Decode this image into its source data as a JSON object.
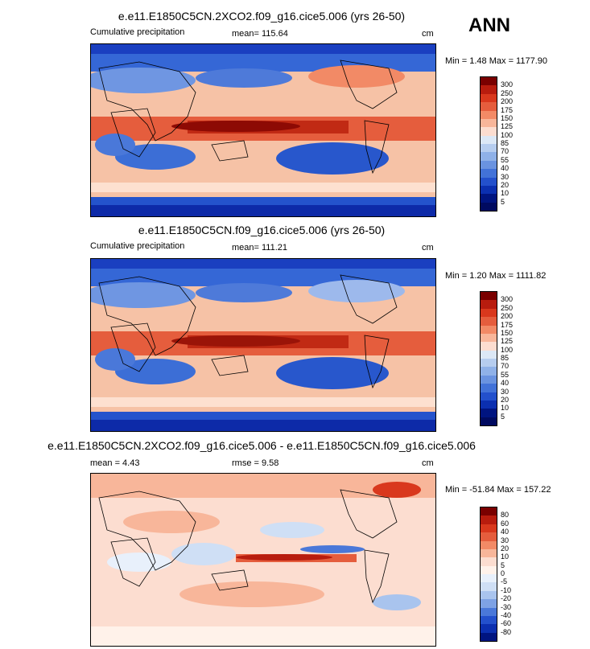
{
  "season": "ANN",
  "units": "cm",
  "panels": [
    {
      "title": "e.e11.E1850C5CN.2XCO2.f09_g16.cice5.006 (yrs 26-50)",
      "subtitle": "Cumulative precipitation",
      "mean_text": "mean= 115.64",
      "minmax": "Min =   1.48 Max = 1177.90",
      "levels": [
        "300",
        "250",
        "200",
        "175",
        "150",
        "125",
        "100",
        "85",
        "70",
        "55",
        "40",
        "30",
        "20",
        "10",
        "5"
      ],
      "colors": [
        "#7a0000",
        "#b81c0e",
        "#d9381d",
        "#e55d3d",
        "#f28a66",
        "#f8b69a",
        "#fcddd0",
        "#dce8f6",
        "#b6cdef",
        "#8fb1e8",
        "#6a93e0",
        "#4272d8",
        "#2350cc",
        "#0b2fb0",
        "#001480",
        "#000a60"
      ]
    },
    {
      "title": "e.e11.E1850C5CN.f09_g16.cice5.006 (yrs 26-50)",
      "subtitle": "Cumulative precipitation",
      "mean_text": "mean= 111.21",
      "minmax": "Min =   1.20 Max = 1111.82",
      "levels": [
        "300",
        "250",
        "200",
        "175",
        "150",
        "125",
        "100",
        "85",
        "70",
        "55",
        "40",
        "30",
        "20",
        "10",
        "5"
      ],
      "colors": [
        "#7a0000",
        "#b81c0e",
        "#d9381d",
        "#e55d3d",
        "#f28a66",
        "#f8b69a",
        "#fcddd0",
        "#dce8f6",
        "#b6cdef",
        "#8fb1e8",
        "#6a93e0",
        "#4272d8",
        "#2350cc",
        "#0b2fb0",
        "#001480",
        "#000a60"
      ]
    },
    {
      "title": "e.e11.E1850C5CN.2XCO2.f09_g16.cice5.006 - e.e11.E1850C5CN.f09_g16.cice5.006",
      "mean_text": "mean =    4.43",
      "rmse_text": "rmse =    9.58",
      "minmax": "Min = -51.84 Max = 157.22",
      "levels": [
        "80",
        "60",
        "40",
        "30",
        "20",
        "10",
        "5",
        "0",
        "-5",
        "-10",
        "-20",
        "-30",
        "-40",
        "-60",
        "-80"
      ],
      "colors": [
        "#7a0000",
        "#b81c0e",
        "#d9381d",
        "#e55d3d",
        "#f28a66",
        "#f8b69a",
        "#fcddd0",
        "#fff2ea",
        "#e8f0fb",
        "#cfdff5",
        "#a9c4ee",
        "#7ea2e4",
        "#4a78d9",
        "#2350cc",
        "#0b2fb0",
        "#001480"
      ]
    }
  ]
}
